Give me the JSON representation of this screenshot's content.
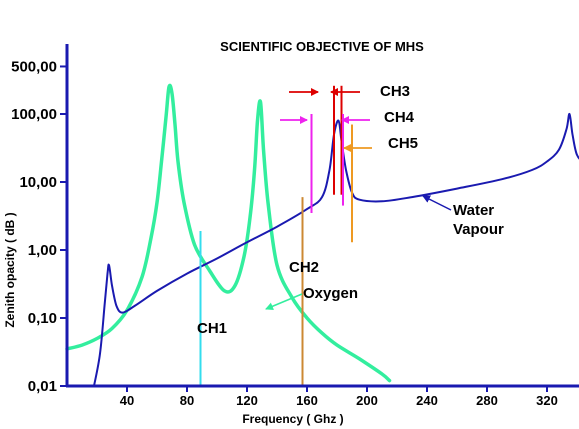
{
  "chart_data": {
    "type": "line",
    "title": "SCIENTIFIC OBJECTIVE OF MHS",
    "xlabel": "Frequency ( Ghz )",
    "ylabel": "Zenith opacity  ( dB )",
    "xlim": [
      0,
      365
    ],
    "ylim": [
      0.01,
      500
    ],
    "yscale": "log",
    "x_ticks": [
      40,
      80,
      120,
      160,
      200,
      240,
      280,
      320
    ],
    "x_tick_labels": [
      "40",
      "80",
      "120",
      "160",
      "200",
      "240",
      "280",
      "320"
    ],
    "y_ticks": [
      0.01,
      0.1,
      1,
      10,
      100,
      500
    ],
    "y_tick_labels": [
      "0,01",
      "0,10",
      "1,00",
      "10,00",
      "100,00",
      "500,00"
    ],
    "series": [
      {
        "color": "#33ee9e",
        "x": [
          0,
          10,
          20,
          30,
          40,
          50,
          56,
          60,
          63,
          66,
          68,
          70,
          72,
          74,
          78,
          85,
          95,
          105,
          112,
          118,
          122,
          125,
          127,
          129,
          131,
          134,
          140,
          150,
          160,
          170,
          180,
          195,
          210,
          215
        ],
        "y": [
          0.035,
          0.04,
          0.05,
          0.07,
          0.13,
          0.4,
          1.5,
          5,
          20,
          90,
          250,
          200,
          70,
          20,
          5,
          1.2,
          0.5,
          0.25,
          0.3,
          0.8,
          3,
          15,
          80,
          150,
          30,
          5,
          0.6,
          0.2,
          0.1,
          0.06,
          0.04,
          0.025,
          0.015,
          0.012
        ]
      },
      {
        "name": "Water Vapour",
        "color": "#1a1ab0",
        "x": [
          18,
          22,
          25,
          27,
          28,
          30,
          33,
          37,
          45,
          60,
          80,
          100,
          120,
          140,
          160,
          170,
          175,
          178,
          181,
          183,
          186,
          190,
          195,
          210,
          230,
          260,
          290,
          310,
          320,
          328,
          333,
          335,
          337,
          340,
          345,
          355,
          365
        ],
        "y": [
          0.01,
          0.03,
          0.15,
          0.45,
          0.6,
          0.3,
          0.15,
          0.12,
          0.15,
          0.25,
          0.45,
          0.75,
          1.3,
          2.2,
          4,
          6,
          15,
          50,
          80,
          40,
          15,
          7,
          5.5,
          5.2,
          6,
          8,
          11,
          15,
          20,
          30,
          60,
          100,
          50,
          25,
          20,
          18,
          25
        ]
      }
    ],
    "channel_markers": [
      {
        "label": "CH1",
        "x": 89,
        "y_range": [
          0.01,
          1.9
        ],
        "color": "#33ddee"
      },
      {
        "label": "CH2",
        "x": 157,
        "y_range": [
          0.01,
          6
        ],
        "color": "#cc8833"
      },
      {
        "label": "CH3",
        "x": 183,
        "y_range": [
          6.5,
          260
        ],
        "color": "#dd0000"
      },
      {
        "label": "CH4",
        "x": 184,
        "y_range": [
          4.5,
          100
        ],
        "color": "#ee22ee"
      },
      {
        "label": "CH5",
        "x": 190,
        "y_range": [
          1.3,
          70
        ],
        "color": "#ee9922"
      }
    ],
    "annotations": [
      "CH1",
      "CH2",
      "Oxygen",
      "CH3",
      "CH4",
      "CH5",
      "Water",
      "Vapour"
    ],
    "grid": false,
    "legend": "none"
  }
}
